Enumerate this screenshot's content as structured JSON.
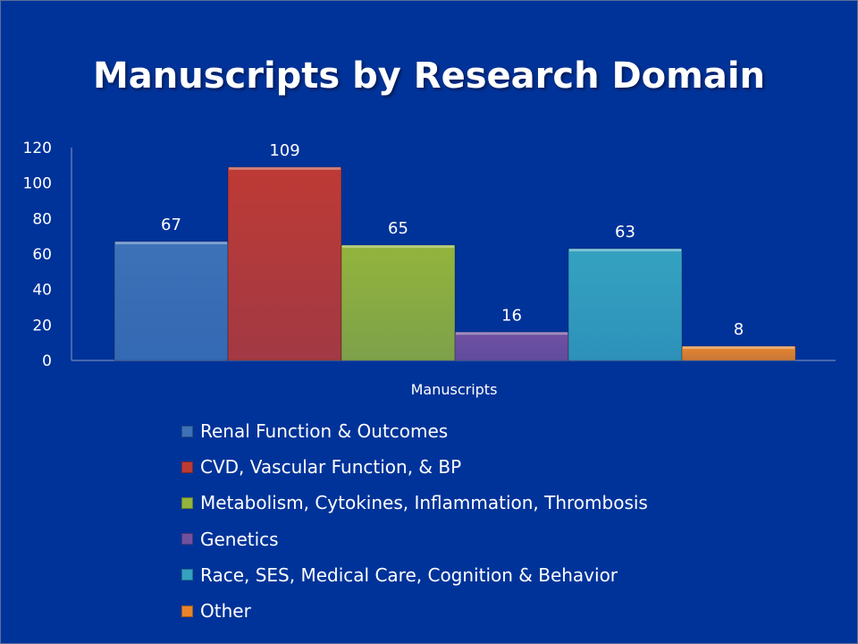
{
  "chart_data": {
    "type": "bar",
    "title": "Manuscripts by Research Domain",
    "categories": [
      "Manuscripts"
    ],
    "xlabel": "",
    "ylabel": "",
    "ylim": [
      0,
      120
    ],
    "yticks": [
      "0",
      "20",
      "40",
      "60",
      "80",
      "100",
      "120"
    ],
    "grid": false,
    "legend_position": "bottom",
    "series": [
      {
        "name": "Renal Function & Outcomes",
        "values": [
          67
        ],
        "color": "#3d72b8"
      },
      {
        "name": "CVD, Vascular Function, & BP",
        "values": [
          109
        ],
        "color": "#be3a35"
      },
      {
        "name": "Metabolism, Cytokines, Inflammation, Thrombosis",
        "values": [
          65
        ],
        "color": "#93b43c"
      },
      {
        "name": "Genetics",
        "values": [
          16
        ],
        "color": "#7150a0"
      },
      {
        "name": "Race, SES, Medical Care, Cognition & Behavior",
        "values": [
          63
        ],
        "color": "#35a2c0"
      },
      {
        "name": "Other",
        "values": [
          8
        ],
        "color": "#e9852a"
      }
    ]
  }
}
